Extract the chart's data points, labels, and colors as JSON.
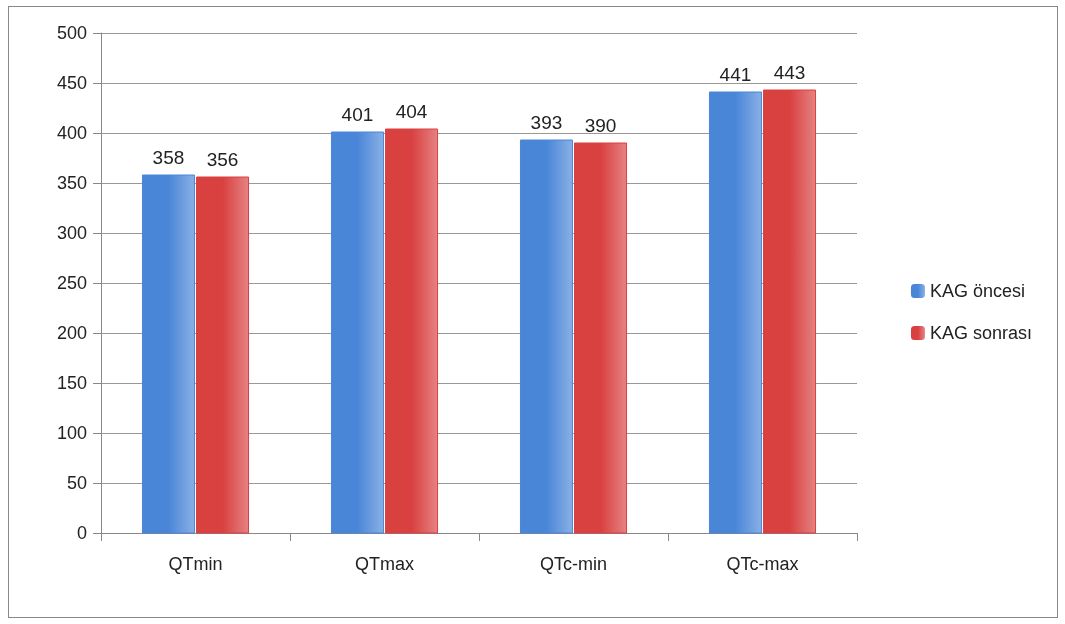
{
  "chart_data": {
    "type": "bar",
    "categories": [
      "QTmin",
      "QTmax",
      "QTc-min",
      "QTc-max"
    ],
    "series": [
      {
        "name": "KAG öncesi",
        "color": "#4a86d8",
        "values": [
          358,
          401,
          393,
          441
        ]
      },
      {
        "name": "KAG sonrası",
        "color": "#d94040",
        "values": [
          356,
          404,
          390,
          443
        ]
      }
    ],
    "ylim": [
      0,
      500
    ],
    "yticks": [
      0,
      50,
      100,
      150,
      200,
      250,
      300,
      350,
      400,
      450,
      500
    ],
    "grid": "y",
    "legend": "right",
    "data_labels": true
  }
}
